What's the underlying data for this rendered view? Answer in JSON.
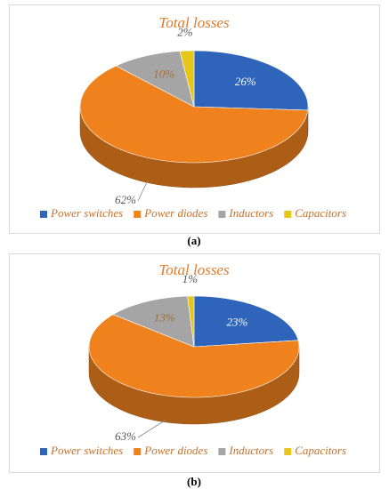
{
  "chart_data": [
    {
      "type": "pie",
      "title": "Total losses",
      "categories": [
        "Power switches",
        "Power diodes",
        "Inductors",
        "Capacitors"
      ],
      "values": [
        26,
        62,
        10,
        2
      ],
      "value_labels": [
        "26%",
        "62%",
        "10%",
        "2%"
      ],
      "colors": [
        "#2e64b9",
        "#f0821e",
        "#a5a5a5",
        "#e6c619"
      ],
      "legend": "bottom"
    },
    {
      "type": "pie",
      "title": "Total losses",
      "categories": [
        "Power switches",
        "Power diodes",
        "Inductors",
        "Capacitors"
      ],
      "values": [
        23,
        63,
        13,
        1
      ],
      "value_labels": [
        "23%",
        "63%",
        "13%",
        "1%"
      ],
      "colors": [
        "#2e64b9",
        "#f0821e",
        "#a5a5a5",
        "#e6c619"
      ],
      "legend": "bottom"
    }
  ],
  "captions": [
    "(a)",
    "(b)"
  ]
}
